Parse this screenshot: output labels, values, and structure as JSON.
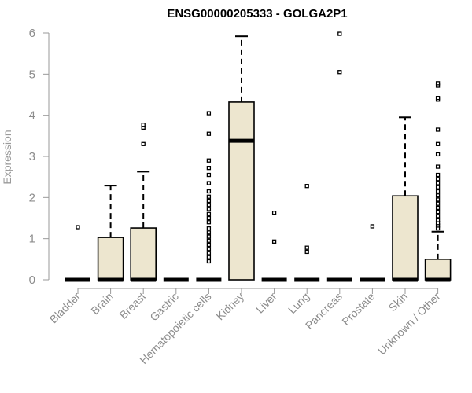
{
  "chart_data": {
    "type": "boxplot",
    "title": "ENSG00000205333 - GOLGA2P1",
    "xlabel": "",
    "ylabel": "Expression",
    "ylim": [
      0,
      6
    ],
    "yticks": [
      0,
      1,
      2,
      3,
      4,
      5,
      6
    ],
    "box_color": "#ede6cf",
    "categories": [
      "Bladder",
      "Brain",
      "Breast",
      "Gastric",
      "Hematopoietic cells",
      "Kidney",
      "Liver",
      "Lung",
      "Pancreas",
      "Prostate",
      "Skin",
      "Unknown / Other"
    ],
    "boxes": [
      {
        "name": "Bladder",
        "q1": 0,
        "median": 0,
        "q3": 0,
        "whisker_low": 0,
        "whisker_high": 0,
        "outliers": [
          1.28
        ]
      },
      {
        "name": "Brain",
        "q1": 0,
        "median": 0,
        "q3": 1.03,
        "whisker_low": 0,
        "whisker_high": 2.29,
        "outliers": []
      },
      {
        "name": "Breast",
        "q1": 0,
        "median": 0,
        "q3": 1.26,
        "whisker_low": 0,
        "whisker_high": 2.63,
        "outliers": [
          3.3,
          3.7,
          3.77
        ]
      },
      {
        "name": "Gastric",
        "q1": 0,
        "median": 0,
        "q3": 0,
        "whisker_low": 0,
        "whisker_high": 0,
        "outliers": []
      },
      {
        "name": "Hematopoietic cells",
        "q1": 0,
        "median": 0,
        "q3": 0,
        "whisker_low": 0,
        "whisker_high": 0,
        "outliers": [
          0.45,
          0.55,
          0.65,
          0.75,
          0.85,
          0.95,
          1.05,
          1.15,
          1.25,
          1.4,
          1.5,
          1.6,
          1.72,
          1.82,
          1.92,
          2.02,
          2.15,
          2.35,
          2.55,
          2.72,
          2.9,
          3.55,
          4.05
        ]
      },
      {
        "name": "Kidney",
        "q1": 0,
        "median": 3.38,
        "q3": 4.32,
        "whisker_low": 0,
        "whisker_high": 5.92,
        "outliers": []
      },
      {
        "name": "Liver",
        "q1": 0,
        "median": 0,
        "q3": 0,
        "whisker_low": 0,
        "whisker_high": 0,
        "outliers": [
          0.93,
          1.63
        ]
      },
      {
        "name": "Lung",
        "q1": 0,
        "median": 0,
        "q3": 0,
        "whisker_low": 0,
        "whisker_high": 0,
        "outliers": [
          0.68,
          0.78,
          2.28
        ]
      },
      {
        "name": "Pancreas",
        "q1": 0,
        "median": 0,
        "q3": 0,
        "whisker_low": 0,
        "whisker_high": 0,
        "outliers": [
          5.05,
          5.98
        ]
      },
      {
        "name": "Prostate",
        "q1": 0,
        "median": 0,
        "q3": 0,
        "whisker_low": 0,
        "whisker_high": 0,
        "outliers": [
          1.3
        ]
      },
      {
        "name": "Skin",
        "q1": 0,
        "median": 0,
        "q3": 2.04,
        "whisker_low": 0,
        "whisker_high": 3.95,
        "outliers": []
      },
      {
        "name": "Unknown / Other",
        "q1": 0,
        "median": 0,
        "q3": 0.5,
        "whisker_low": 0,
        "whisker_high": 1.17,
        "outliers": [
          1.25,
          1.32,
          1.38,
          1.45,
          1.55,
          1.65,
          1.75,
          1.85,
          1.95,
          2.05,
          2.15,
          2.25,
          2.35,
          2.45,
          2.55,
          2.75,
          3.05,
          3.3,
          3.65,
          4.38,
          4.42,
          4.72,
          4.78
        ]
      }
    ]
  }
}
